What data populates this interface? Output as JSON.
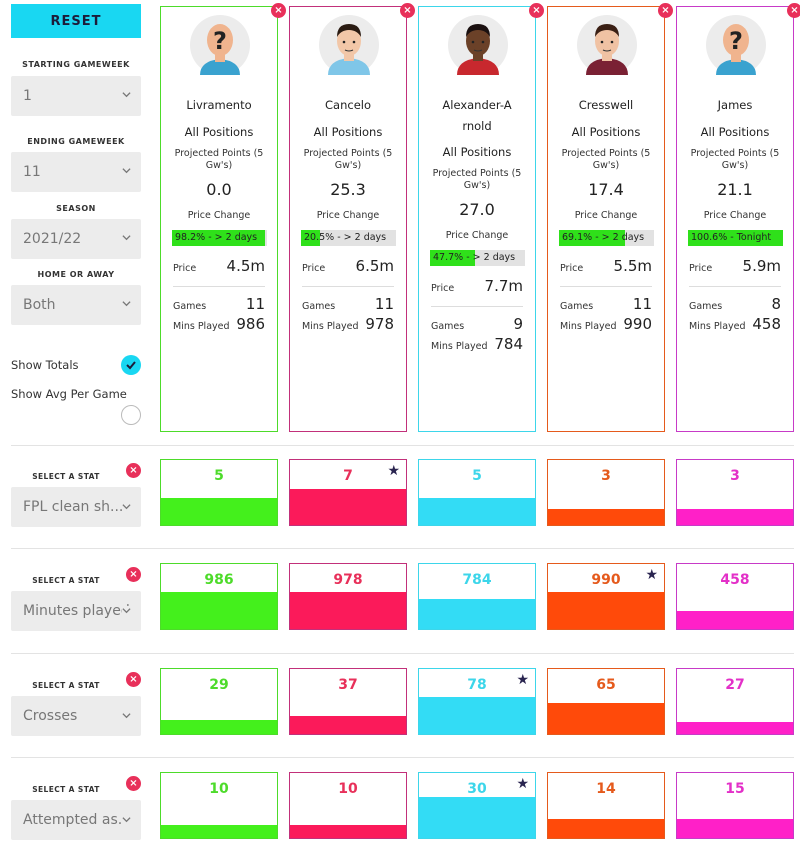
{
  "sidebar": {
    "reset_label": "RESET",
    "starting_label": "STARTING GAMEWEEK",
    "starting_value": "1",
    "ending_label": "ENDING GAMEWEEK",
    "ending_value": "11",
    "season_label": "SEASON",
    "season_value": "2021/22",
    "venue_label": "HOME OR AWAY",
    "venue_value": "Both",
    "show_totals_label": "Show Totals",
    "show_totals_checked": true,
    "show_avg_label": "Show Avg Per Game",
    "show_avg_checked": false
  },
  "labels": {
    "projected": "Projected Points (5 Gw's)",
    "price_change": "Price Change",
    "price": "Price",
    "games": "Games",
    "mins": "Mins Played",
    "select_stat": "SELECT A STAT",
    "close": "×",
    "star": "★"
  },
  "players": [
    {
      "name": "Livramento",
      "position": "All Positions",
      "projected": "0.0",
      "price_change_text": "98.2% - > 2 days",
      "price_change_pct": 98.2,
      "price": "4.5m",
      "games": "11",
      "mins": "986",
      "color": "#4ddb2a",
      "avatar": "unknown"
    },
    {
      "name": "Cancelo",
      "position": "All Positions",
      "projected": "25.3",
      "price_change_text": "20.5% - > 2 days",
      "price_change_pct": 20.5,
      "price": "6.5m",
      "games": "11",
      "mins": "978",
      "color": "#c2307a",
      "avatar": "cancelo"
    },
    {
      "name": "Alexander-Arnold",
      "position": "All Positions",
      "projected": "27.0",
      "price_change_text": "47.7% - > 2 days",
      "price_change_pct": 47.7,
      "price": "7.7m",
      "games": "9",
      "mins": "784",
      "color": "#3dd6ea",
      "avatar": "taa"
    },
    {
      "name": "Cresswell",
      "position": "All Positions",
      "projected": "17.4",
      "price_change_text": "69.1% - > 2 days",
      "price_change_pct": 69.1,
      "price": "5.5m",
      "games": "11",
      "mins": "990",
      "color": "#e55a1c",
      "avatar": "cresswell"
    },
    {
      "name": "James",
      "position": "All Positions",
      "projected": "21.1",
      "price_change_text": "100.6% - Tonight",
      "price_change_pct": 100,
      "price": "5.9m",
      "games": "8",
      "mins": "458",
      "color": "#c73ac7",
      "avatar": "unknown"
    }
  ],
  "stats": [
    {
      "name": "FPL clean sh...",
      "values": [
        "5",
        "7",
        "5",
        "3",
        "3"
      ],
      "fill": [
        0.41,
        0.55,
        0.41,
        0.24,
        0.24
      ],
      "star": 1
    },
    {
      "name": "Minutes played",
      "values": [
        "986",
        "978",
        "784",
        "990",
        "458"
      ],
      "fill": [
        0.57,
        0.57,
        0.46,
        0.57,
        0.27
      ],
      "star": 3
    },
    {
      "name": "Crosses",
      "values": [
        "29",
        "37",
        "78",
        "65",
        "27"
      ],
      "fill": [
        0.21,
        0.27,
        0.57,
        0.47,
        0.19
      ],
      "star": 2
    },
    {
      "name": "Attempted as...",
      "values": [
        "10",
        "10",
        "30",
        "14",
        "15"
      ],
      "fill": [
        0.2,
        0.2,
        0.63,
        0.29,
        0.3
      ],
      "star": 2
    }
  ],
  "stat_colors": {
    "text": [
      "#4ddb2a",
      "#e8305a",
      "#3dd6ea",
      "#e55a1c",
      "#e330c8"
    ],
    "fill": [
      "#44f01c",
      "#fb1a5a",
      "#33dcf5",
      "#ff4a0a",
      "#ff20c8"
    ],
    "border": [
      "#4ddb2a",
      "#c2307a",
      "#3dd6ea",
      "#e55a1c",
      "#c73ac7"
    ]
  }
}
